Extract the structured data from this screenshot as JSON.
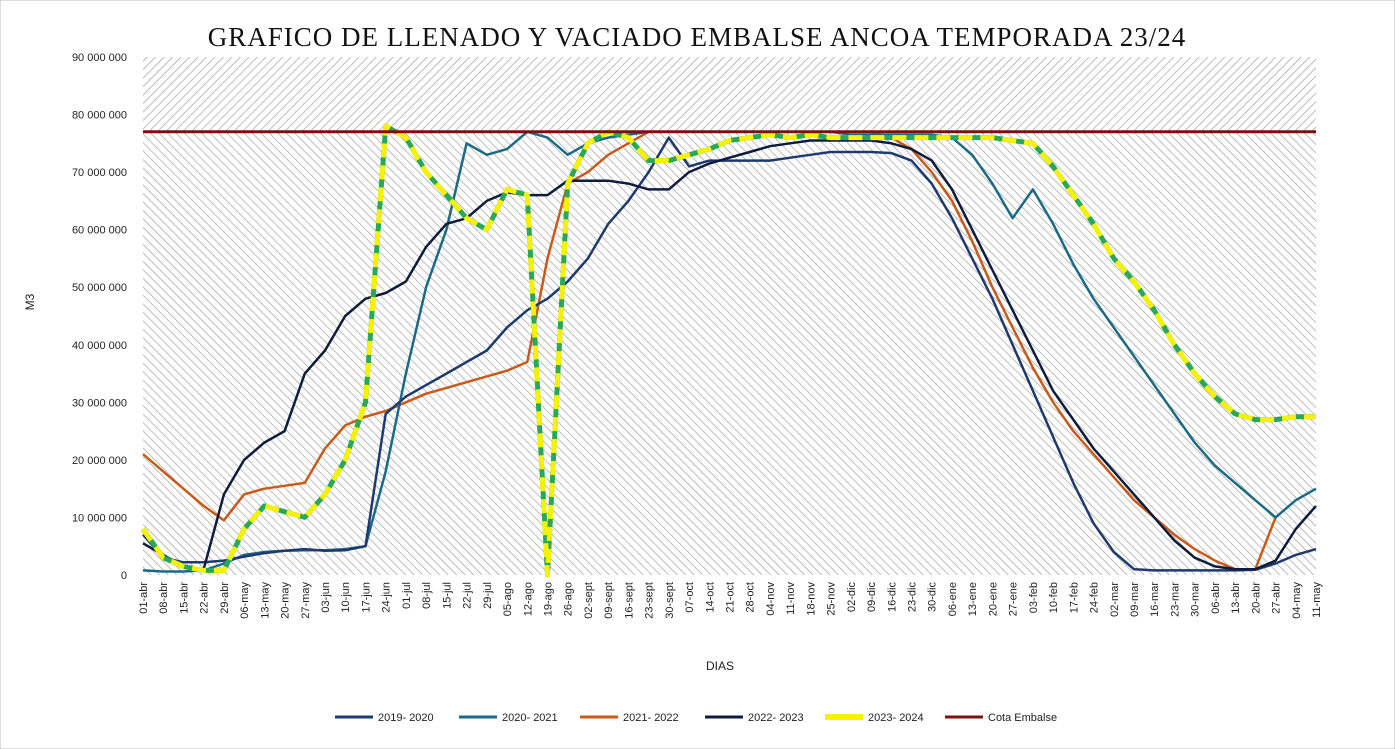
{
  "chart_data": {
    "type": "line",
    "title": "GRAFICO DE LLENADO Y VACIADO EMBALSE ANCOA TEMPORADA 23/24",
    "xlabel": "DIAS",
    "ylabel": "M3",
    "ylim": [
      0,
      90000000
    ],
    "yticks": [
      "0",
      "10 000 000",
      "20 000 000",
      "30 000 000",
      "40 000 000",
      "50 000 000",
      "60 000 000",
      "70 000 000",
      "80 000 000",
      "90 000 000"
    ],
    "ytick_values": [
      0,
      10000000,
      20000000,
      30000000,
      40000000,
      50000000,
      60000000,
      70000000,
      80000000,
      90000000
    ],
    "categories": [
      "01-abr",
      "08-abr",
      "15-abr",
      "22-abr",
      "29-abr",
      "06-may",
      "13-may",
      "20-may",
      "27-may",
      "03-jun",
      "10-jun",
      "17-jun",
      "24-jun",
      "01-jul",
      "08-jul",
      "15-jul",
      "22-jul",
      "29-jul",
      "05-ago",
      "12-ago",
      "19-ago",
      "26-ago",
      "02-sept",
      "09-sept",
      "16-sept",
      "23-sept",
      "30-sept",
      "07-oct",
      "14-oct",
      "21-oct",
      "28-oct",
      "04-nov",
      "11-nov",
      "18-nov",
      "25-nov",
      "02-dic",
      "09-dic",
      "16-dic",
      "23-dic",
      "30-dic",
      "06-ene",
      "13-ene",
      "20-ene",
      "27-ene",
      "03-feb",
      "10-feb",
      "17-feb",
      "24-feb",
      "02-mar",
      "09-mar",
      "16-mar",
      "23-mar",
      "30-mar",
      "06-abr",
      "13-abr",
      "20-abr",
      "27-abr",
      "04-may",
      "11-may"
    ],
    "legend_position": "bottom",
    "series": [
      {
        "name": "2019- 2020",
        "color": "#1f3a6e",
        "style": "solid",
        "values": [
          7000000,
          3000000,
          2200000,
          2200000,
          2500000,
          3200000,
          3800000,
          4200000,
          4500000,
          4200000,
          4300000,
          5000000,
          28000000,
          31000000,
          33000000,
          35000000,
          37000000,
          39000000,
          43000000,
          46000000,
          48000000,
          51000000,
          55000000,
          61000000,
          65000000,
          70000000,
          76000000,
          71000000,
          72000000,
          72000000,
          72000000,
          72000000,
          72500000,
          73000000,
          73500000,
          73500000,
          73500000,
          73300000,
          72000000,
          68000000,
          62000000,
          55000000,
          48000000,
          40000000,
          32000000,
          24000000,
          16000000,
          9000000,
          4000000,
          1000000,
          800000,
          800000,
          800000,
          800000,
          800000,
          900000,
          2000000,
          3500000,
          4500000
        ]
      },
      {
        "name": "2020- 2021",
        "color": "#1b6a87",
        "style": "solid",
        "values": [
          800000,
          600000,
          600000,
          800000,
          2000000,
          3500000,
          4000000,
          4200000,
          4300000,
          4300000,
          4500000,
          5000000,
          18000000,
          35000000,
          50000000,
          60000000,
          75000000,
          73000000,
          74000000,
          77000000,
          76000000,
          73000000,
          75000000,
          76000000,
          76500000,
          77000000,
          77000000,
          77000000,
          77000000,
          77000000,
          77000000,
          77000000,
          77000000,
          77000000,
          77000000,
          76500000,
          76500000,
          76500000,
          76500000,
          76500000,
          76000000,
          73000000,
          68000000,
          62000000,
          67000000,
          61000000,
          54000000,
          48000000,
          43000000,
          38000000,
          33000000,
          28000000,
          23000000,
          19000000,
          16000000,
          13000000,
          10000000,
          13000000,
          15000000
        ]
      },
      {
        "name": "2021- 2022",
        "color": "#c85a1a",
        "style": "solid",
        "values": [
          21000000,
          18000000,
          15000000,
          12000000,
          9500000,
          14000000,
          15000000,
          15500000,
          16000000,
          22000000,
          26000000,
          27500000,
          28500000,
          30000000,
          31500000,
          32500000,
          33500000,
          34500000,
          35500000,
          37000000,
          55000000,
          68000000,
          70000000,
          73000000,
          75000000,
          77000000,
          77000000,
          77000000,
          77000000,
          77000000,
          77000000,
          77000000,
          77000000,
          77000000,
          77000000,
          77000000,
          77000000,
          76000000,
          74000000,
          70000000,
          65000000,
          58000000,
          50000000,
          43000000,
          36000000,
          30000000,
          25000000,
          21000000,
          17000000,
          13000000,
          10000000,
          7000000,
          4500000,
          2500000,
          1000000,
          1000000,
          10000000,
          null,
          null
        ]
      },
      {
        "name": "2022- 2023",
        "color": "#0f1c3d",
        "style": "solid",
        "values": [
          5500000,
          3500000,
          1500000,
          1000000,
          14000000,
          20000000,
          23000000,
          25000000,
          35000000,
          39000000,
          45000000,
          48000000,
          49000000,
          51000000,
          57000000,
          61000000,
          62000000,
          65000000,
          66500000,
          66000000,
          66000000,
          68500000,
          68500000,
          68500000,
          68000000,
          67000000,
          67000000,
          70000000,
          71500000,
          72500000,
          73500000,
          74500000,
          75000000,
          75500000,
          75500000,
          75500000,
          75500000,
          75000000,
          74000000,
          72000000,
          67000000,
          60000000,
          53000000,
          46000000,
          39000000,
          32000000,
          27000000,
          22000000,
          18000000,
          14000000,
          10000000,
          6000000,
          3000000,
          1500000,
          1000000,
          1000000,
          2500000,
          8000000,
          12000000
        ]
      },
      {
        "name": "2023- 2024",
        "color": "#f7f205",
        "accent": "#2aa85a",
        "style": "dashed",
        "values": [
          8000000,
          3000000,
          1500000,
          800000,
          800000,
          8000000,
          12000000,
          11000000,
          10000000,
          14000000,
          20000000,
          30000000,
          78000000,
          76000000,
          70000000,
          66000000,
          62000000,
          60000000,
          67000000,
          66000000,
          0,
          68000000,
          75000000,
          77000000,
          76000000,
          72000000,
          72000000,
          73000000,
          74000000,
          75500000,
          76000000,
          76500000,
          76000000,
          76500000,
          76000000,
          76000000,
          76000000,
          76000000,
          76000000,
          76000000,
          76000000,
          76000000,
          76000000,
          75500000,
          75000000,
          71000000,
          66000000,
          61000000,
          55000000,
          51000000,
          46000000,
          40000000,
          35000000,
          31000000,
          28000000,
          27000000,
          27000000,
          27500000,
          27500000
        ]
      },
      {
        "name": "Cota Embalse",
        "color": "#7a1010",
        "style": "solid",
        "values": [
          77000000,
          77000000,
          77000000,
          77000000,
          77000000,
          77000000,
          77000000,
          77000000,
          77000000,
          77000000,
          77000000,
          77000000,
          77000000,
          77000000,
          77000000,
          77000000,
          77000000,
          77000000,
          77000000,
          77000000,
          77000000,
          77000000,
          77000000,
          77000000,
          77000000,
          77000000,
          77000000,
          77000000,
          77000000,
          77000000,
          77000000,
          77000000,
          77000000,
          77000000,
          77000000,
          77000000,
          77000000,
          77000000,
          77000000,
          77000000,
          77000000,
          77000000,
          77000000,
          77000000,
          77000000,
          77000000,
          77000000,
          77000000,
          77000000,
          77000000,
          77000000,
          77000000,
          77000000,
          77000000,
          77000000,
          77000000,
          77000000,
          77000000,
          77000000
        ]
      }
    ]
  }
}
